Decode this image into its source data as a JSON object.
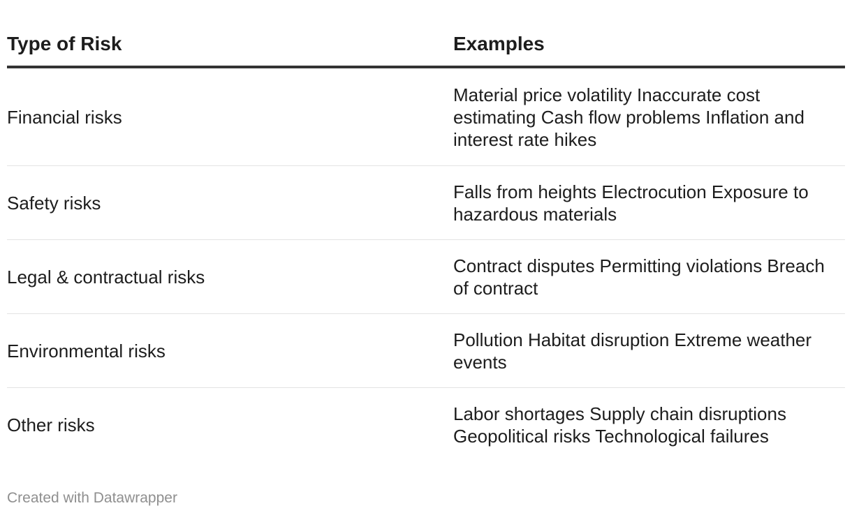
{
  "table": {
    "headers": {
      "type": "Type of Risk",
      "examples": "Examples"
    },
    "rows": [
      {
        "type": "Financial risks",
        "examples": "Material price volatility Inaccurate cost estimating Cash flow problems Inflation and interest rate hikes"
      },
      {
        "type": "Safety risks",
        "examples": "Falls from heights Electrocution Exposure to hazardous materials"
      },
      {
        "type": "Legal & contractual risks",
        "examples": "Contract disputes Permitting violations Breach of contract"
      },
      {
        "type": "Environmental risks",
        "examples": "Pollution Habitat disruption Extreme weather events"
      },
      {
        "type": "Other risks",
        "examples": "Labor shortages Supply chain disruptions Geopolitical risks Technological failures"
      }
    ]
  },
  "footer": {
    "credit": "Created with Datawrapper"
  }
}
